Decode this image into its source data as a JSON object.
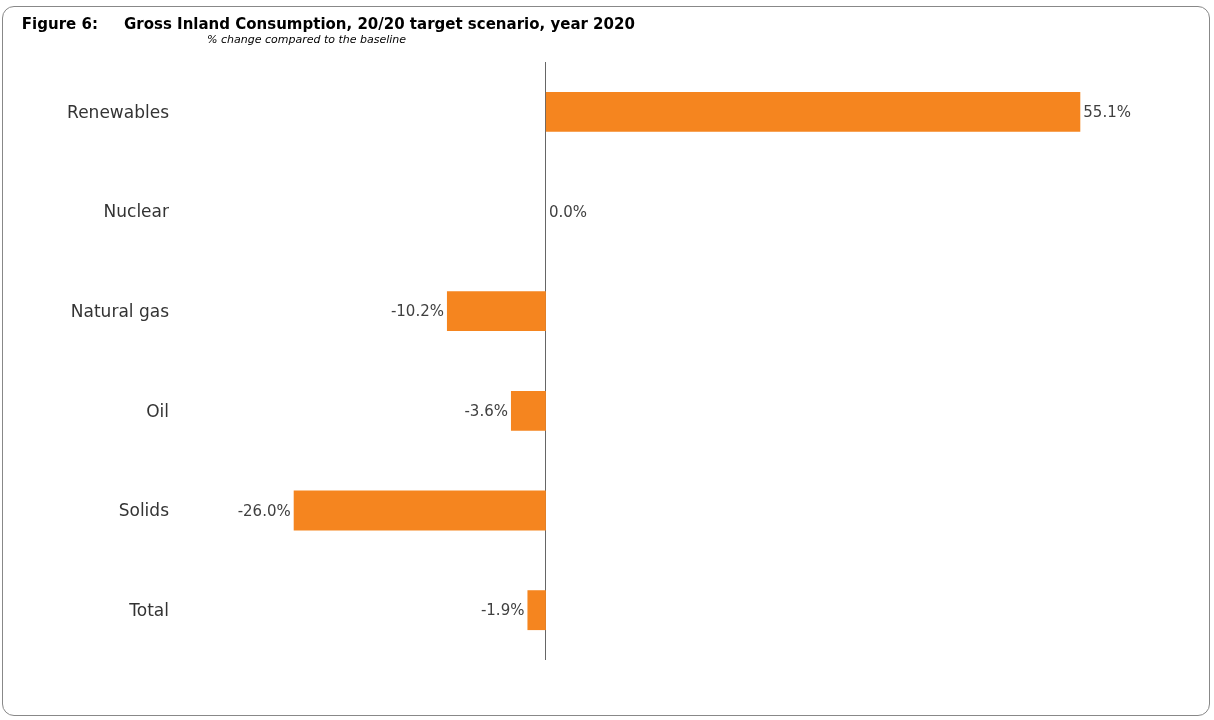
{
  "chart_data": {
    "type": "bar",
    "orientation": "horizontal",
    "title": "Figure 6:     Gross Inland Consumption, 20/20 target scenario, year 2020",
    "subtitle": "% change compared to the baseline",
    "categories": [
      "Renewables",
      "Nuclear",
      "Natural gas",
      "Oil",
      "Solids",
      "Total"
    ],
    "values": [
      55.1,
      0.0,
      -10.2,
      -3.6,
      -26.0,
      -1.9
    ],
    "value_labels": [
      "55.1%",
      "0.0%",
      "-10.2%",
      "-3.6%",
      "-26.0%",
      "-1.9%"
    ],
    "color": "#f5851f",
    "tick_labels": "y",
    "legend": false
  }
}
